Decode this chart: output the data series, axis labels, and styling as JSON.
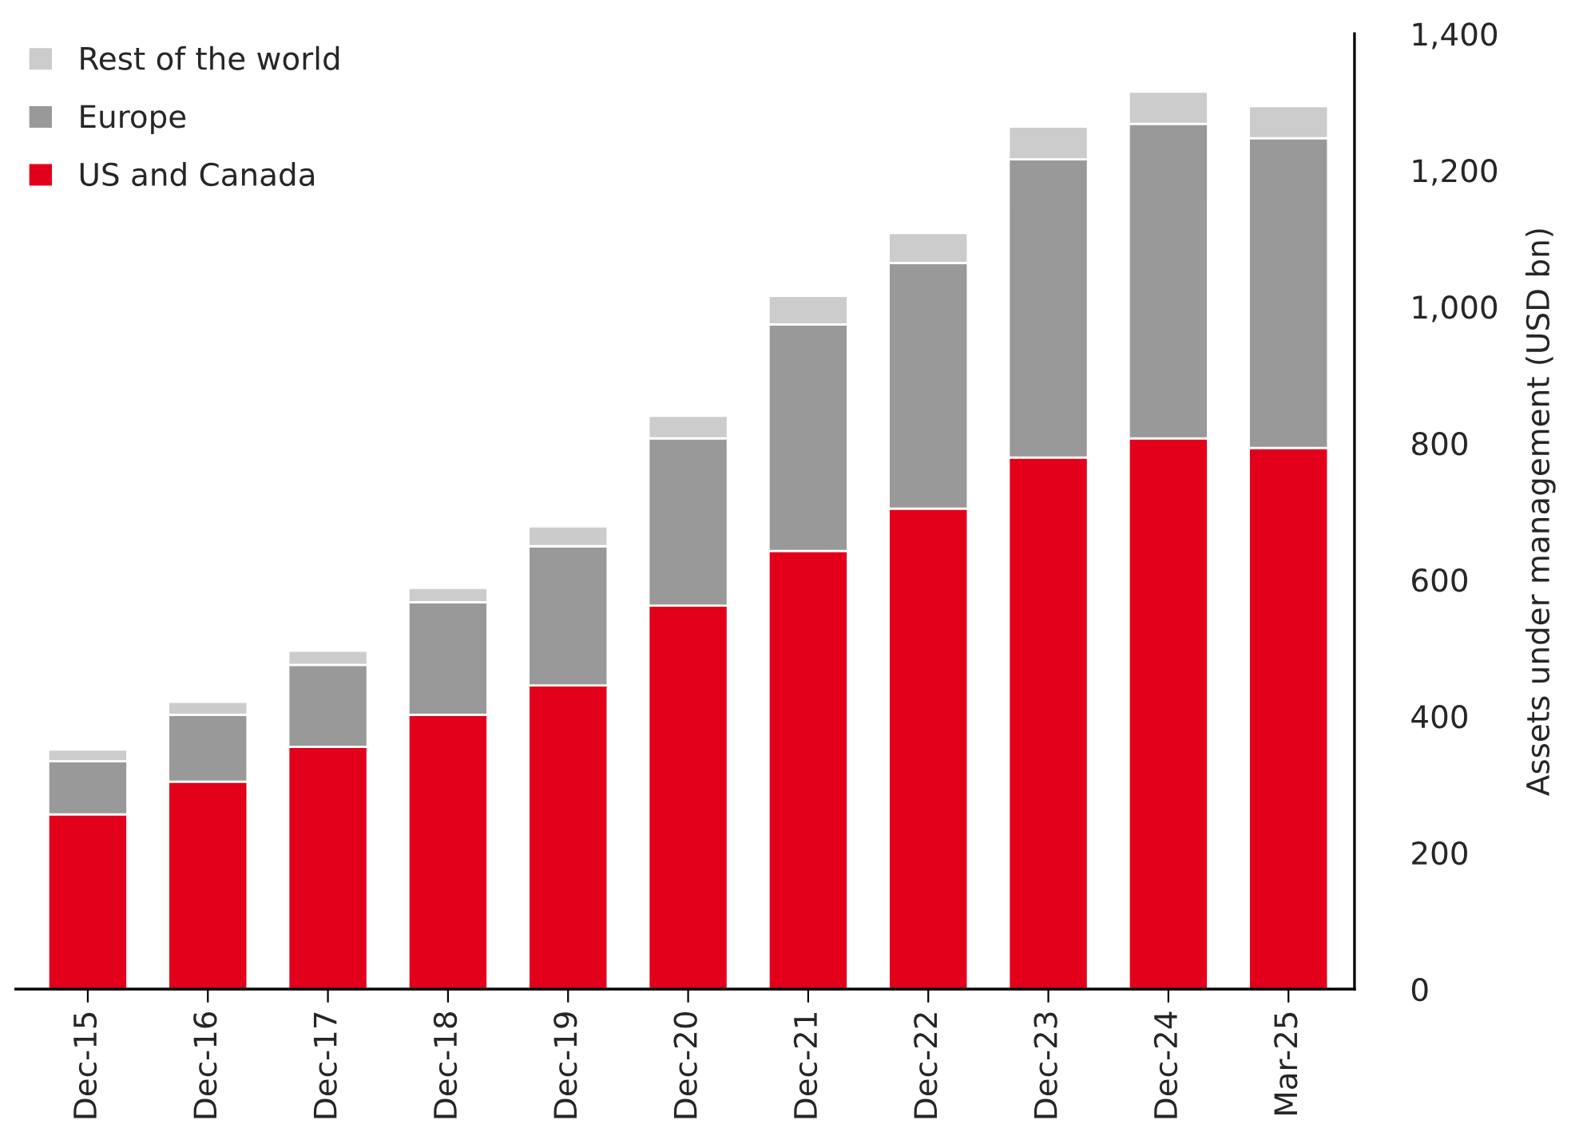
{
  "chart_data": {
    "type": "bar",
    "stacked": true,
    "ylabel": "Assets under management (USD bn)",
    "categories": [
      "Dec-15",
      "Dec-16",
      "Dec-17",
      "Dec-18",
      "Dec-19",
      "Dec-20",
      "Dec-21",
      "Dec-22",
      "Dec-23",
      "Dec-24",
      "Mar-25"
    ],
    "series": [
      {
        "name": "US and Canada",
        "color": "#e2001a",
        "values": [
          256,
          304,
          355,
          402,
          445,
          562,
          642,
          704,
          779,
          807,
          793
        ]
      },
      {
        "name": "Europe",
        "color": "#999999",
        "values": [
          78,
          98,
          120,
          165,
          204,
          245,
          332,
          360,
          437,
          461,
          454
        ]
      },
      {
        "name": "Rest of the world",
        "color": "#cccccc",
        "values": [
          17,
          19,
          21,
          21,
          29,
          33,
          42,
          44,
          48,
          47,
          47
        ]
      }
    ],
    "ylim": [
      0,
      1400
    ],
    "yticks": [
      {
        "value": 0,
        "label": "0"
      },
      {
        "value": 200,
        "label": "200"
      },
      {
        "value": 400,
        "label": "400"
      },
      {
        "value": 600,
        "label": "600"
      },
      {
        "value": 800,
        "label": "800"
      },
      {
        "value": 1000,
        "label": "1,000"
      },
      {
        "value": 1200,
        "label": "1,200"
      },
      {
        "value": 1400,
        "label": "1,400"
      }
    ],
    "legend": "top left",
    "grid": false
  }
}
